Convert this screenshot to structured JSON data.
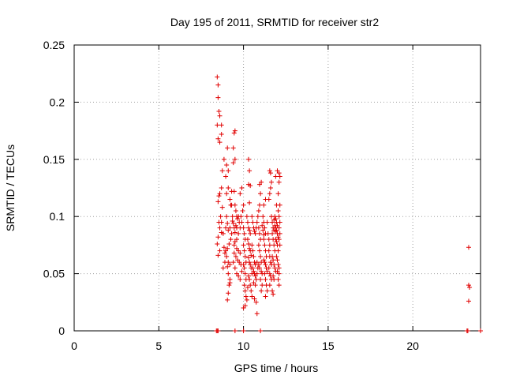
{
  "chart_data": {
    "type": "scatter",
    "title": "Day 195 of 2011, SRMTID for receiver str2",
    "xlabel": "GPS time / hours",
    "ylabel": "SRMTID / TECUs",
    "xlim": [
      0,
      24
    ],
    "ylim": [
      0,
      0.25
    ],
    "xticks": [
      0,
      5,
      10,
      15,
      20
    ],
    "xtick_labels": [
      "0",
      "5",
      "10",
      "15",
      "20"
    ],
    "yticks": [
      0,
      0.05,
      0.1,
      0.15,
      0.2,
      0.25
    ],
    "ytick_labels": [
      "0",
      "0.05",
      "0.1",
      "0.15",
      "0.2",
      "0.25"
    ],
    "grid": true,
    "marker": "+",
    "color": "#e00000",
    "series": [
      {
        "name": "SRMTID",
        "points": [
          [
            8.45,
            0.222
          ],
          [
            8.5,
            0.215
          ],
          [
            8.5,
            0.204
          ],
          [
            8.55,
            0.192
          ],
          [
            8.6,
            0.188
          ],
          [
            8.45,
            0.18
          ],
          [
            8.7,
            0.18
          ],
          [
            8.5,
            0.168
          ],
          [
            8.6,
            0.165
          ],
          [
            8.7,
            0.172
          ],
          [
            8.5,
            0.113
          ],
          [
            8.55,
            0.118
          ],
          [
            8.6,
            0.12
          ],
          [
            8.65,
            0.1
          ],
          [
            8.7,
            0.125
          ],
          [
            8.55,
            0.095
          ],
          [
            8.5,
            0.082
          ],
          [
            8.6,
            0.09
          ],
          [
            8.7,
            0.086
          ],
          [
            8.45,
            0.076
          ],
          [
            8.5,
            0.066
          ],
          [
            8.6,
            0.07
          ],
          [
            8.75,
            0.108
          ],
          [
            8.8,
            0.085
          ],
          [
            8.85,
            0.073
          ],
          [
            8.9,
            0.068
          ],
          [
            8.95,
            0.09
          ],
          [
            8.8,
            0.055
          ],
          [
            8.9,
            0.06
          ],
          [
            8.75,
            0.14
          ],
          [
            8.85,
            0.15
          ],
          [
            8.95,
            0.135
          ],
          [
            8.7,
            0.095
          ],
          [
            9.0,
            0.145
          ],
          [
            9.05,
            0.16
          ],
          [
            9.1,
            0.14
          ],
          [
            9.0,
            0.12
          ],
          [
            9.1,
            0.125
          ],
          [
            9.2,
            0.115
          ],
          [
            9.3,
            0.11
          ],
          [
            9.0,
            0.1
          ],
          [
            9.05,
            0.094
          ],
          [
            9.1,
            0.088
          ],
          [
            9.2,
            0.09
          ],
          [
            9.3,
            0.085
          ],
          [
            9.35,
            0.096
          ],
          [
            9.25,
            0.08
          ],
          [
            9.15,
            0.076
          ],
          [
            9.05,
            0.072
          ],
          [
            8.95,
            0.07
          ],
          [
            9.0,
            0.065
          ],
          [
            9.1,
            0.06
          ],
          [
            9.2,
            0.058
          ],
          [
            9.05,
            0.056
          ],
          [
            9.1,
            0.05
          ],
          [
            9.2,
            0.045
          ],
          [
            9.15,
            0.04
          ],
          [
            9.2,
            0.042
          ],
          [
            9.1,
            0.033
          ],
          [
            9.05,
            0.027
          ],
          [
            9.4,
            0.16
          ],
          [
            9.45,
            0.173
          ],
          [
            9.5,
            0.175
          ],
          [
            9.4,
            0.147
          ],
          [
            9.5,
            0.15
          ],
          [
            9.45,
            0.122
          ],
          [
            9.5,
            0.11
          ],
          [
            9.55,
            0.105
          ],
          [
            9.6,
            0.1
          ],
          [
            9.65,
            0.098
          ],
          [
            9.4,
            0.094
          ],
          [
            9.45,
            0.09
          ],
          [
            9.5,
            0.086
          ],
          [
            9.55,
            0.092
          ],
          [
            9.6,
            0.09
          ],
          [
            9.7,
            0.1
          ],
          [
            9.75,
            0.095
          ],
          [
            9.8,
            0.09
          ],
          [
            9.7,
            0.085
          ],
          [
            9.6,
            0.08
          ],
          [
            9.5,
            0.078
          ],
          [
            9.45,
            0.075
          ],
          [
            9.6,
            0.072
          ],
          [
            9.7,
            0.07
          ],
          [
            9.8,
            0.068
          ],
          [
            9.55,
            0.065
          ],
          [
            9.65,
            0.062
          ],
          [
            9.75,
            0.06
          ],
          [
            9.85,
            0.058
          ],
          [
            9.5,
            0.055
          ],
          [
            9.6,
            0.05
          ],
          [
            9.7,
            0.048
          ],
          [
            9.8,
            0.045
          ],
          [
            9.9,
            0.052
          ],
          [
            9.4,
            0.06
          ],
          [
            9.45,
            0.068
          ],
          [
            9.85,
            0.1
          ],
          [
            9.9,
            0.095
          ],
          [
            9.95,
            0.105
          ],
          [
            9.8,
            0.12
          ],
          [
            9.9,
            0.125
          ],
          [
            10.0,
            0.11
          ],
          [
            10.0,
            0.09
          ],
          [
            10.05,
            0.085
          ],
          [
            10.1,
            0.08
          ],
          [
            10.0,
            0.075
          ],
          [
            10.05,
            0.07
          ],
          [
            10.1,
            0.065
          ],
          [
            10.15,
            0.06
          ],
          [
            10.0,
            0.058
          ],
          [
            10.05,
            0.055
          ],
          [
            10.1,
            0.05
          ],
          [
            10.15,
            0.045
          ],
          [
            10.05,
            0.04
          ],
          [
            10.1,
            0.035
          ],
          [
            10.15,
            0.03
          ],
          [
            10.0,
            0.02
          ],
          [
            10.1,
            0.022
          ],
          [
            10.2,
            0.027
          ],
          [
            10.2,
            0.1
          ],
          [
            10.25,
            0.095
          ],
          [
            10.3,
            0.09
          ],
          [
            10.35,
            0.088
          ],
          [
            10.4,
            0.085
          ],
          [
            10.25,
            0.08
          ],
          [
            10.3,
            0.076
          ],
          [
            10.35,
            0.072
          ],
          [
            10.4,
            0.07
          ],
          [
            10.45,
            0.066
          ],
          [
            10.3,
            0.064
          ],
          [
            10.35,
            0.06
          ],
          [
            10.4,
            0.058
          ],
          [
            10.45,
            0.055
          ],
          [
            10.5,
            0.05
          ],
          [
            10.3,
            0.048
          ],
          [
            10.35,
            0.045
          ],
          [
            10.4,
            0.04
          ],
          [
            10.25,
            0.038
          ],
          [
            10.45,
            0.035
          ],
          [
            10.5,
            0.03
          ],
          [
            10.3,
            0.15
          ],
          [
            10.35,
            0.14
          ],
          [
            10.3,
            0.128
          ],
          [
            10.4,
            0.127
          ],
          [
            10.35,
            0.112
          ],
          [
            10.5,
            0.075
          ],
          [
            10.55,
            0.07
          ],
          [
            10.6,
            0.065
          ],
          [
            10.65,
            0.06
          ],
          [
            10.7,
            0.058
          ],
          [
            10.55,
            0.055
          ],
          [
            10.6,
            0.052
          ],
          [
            10.65,
            0.05
          ],
          [
            10.7,
            0.048
          ],
          [
            10.75,
            0.045
          ],
          [
            10.6,
            0.042
          ],
          [
            10.7,
            0.04
          ],
          [
            10.8,
            0.05
          ],
          [
            10.85,
            0.055
          ],
          [
            10.8,
            0.06
          ],
          [
            10.65,
            0.028
          ],
          [
            10.75,
            0.025
          ],
          [
            10.8,
            0.015
          ],
          [
            10.7,
            0.085
          ],
          [
            10.75,
            0.09
          ],
          [
            10.8,
            0.095
          ],
          [
            10.85,
            0.1
          ],
          [
            10.9,
            0.105
          ],
          [
            10.95,
            0.11
          ],
          [
            10.9,
            0.09
          ],
          [
            10.95,
            0.085
          ],
          [
            11.0,
            0.08
          ],
          [
            10.9,
            0.075
          ],
          [
            10.95,
            0.07
          ],
          [
            11.0,
            0.065
          ],
          [
            11.05,
            0.06
          ],
          [
            10.9,
            0.058
          ],
          [
            10.95,
            0.055
          ],
          [
            11.05,
            0.052
          ],
          [
            11.1,
            0.05
          ],
          [
            11.0,
            0.045
          ],
          [
            11.1,
            0.04
          ],
          [
            11.05,
            0.035
          ],
          [
            11.0,
            0.12
          ],
          [
            10.95,
            0.128
          ],
          [
            11.05,
            0.13
          ],
          [
            11.15,
            0.1
          ],
          [
            11.2,
            0.095
          ],
          [
            11.25,
            0.09
          ],
          [
            11.3,
            0.085
          ],
          [
            11.2,
            0.08
          ],
          [
            11.25,
            0.075
          ],
          [
            11.3,
            0.07
          ],
          [
            11.35,
            0.065
          ],
          [
            11.2,
            0.062
          ],
          [
            11.25,
            0.06
          ],
          [
            11.3,
            0.058
          ],
          [
            11.35,
            0.055
          ],
          [
            11.4,
            0.052
          ],
          [
            11.25,
            0.05
          ],
          [
            11.3,
            0.045
          ],
          [
            11.35,
            0.04
          ],
          [
            11.4,
            0.035
          ],
          [
            11.3,
            0.03
          ],
          [
            11.2,
            0.11
          ],
          [
            11.3,
            0.115
          ],
          [
            11.4,
            0.095
          ],
          [
            11.45,
            0.085
          ],
          [
            11.5,
            0.08
          ],
          [
            11.55,
            0.075
          ],
          [
            11.5,
            0.07
          ],
          [
            11.55,
            0.065
          ],
          [
            11.6,
            0.06
          ],
          [
            11.65,
            0.058
          ],
          [
            11.5,
            0.055
          ],
          [
            11.55,
            0.05
          ],
          [
            11.6,
            0.048
          ],
          [
            11.65,
            0.045
          ],
          [
            11.55,
            0.04
          ],
          [
            11.5,
            0.115
          ],
          [
            11.55,
            0.12
          ],
          [
            11.6,
            0.125
          ],
          [
            11.65,
            0.13
          ],
          [
            11.55,
            0.14
          ],
          [
            11.6,
            0.138
          ],
          [
            11.65,
            0.1
          ],
          [
            11.7,
            0.095
          ],
          [
            11.75,
            0.09
          ],
          [
            11.8,
            0.088
          ],
          [
            11.7,
            0.085
          ],
          [
            11.75,
            0.08
          ],
          [
            11.8,
            0.075
          ],
          [
            11.85,
            0.07
          ],
          [
            11.7,
            0.065
          ],
          [
            11.75,
            0.062
          ],
          [
            11.8,
            0.058
          ],
          [
            11.85,
            0.055
          ],
          [
            11.9,
            0.052
          ],
          [
            11.75,
            0.048
          ],
          [
            11.8,
            0.045
          ],
          [
            11.7,
            0.035
          ],
          [
            11.75,
            0.032
          ],
          [
            11.85,
            0.1
          ],
          [
            11.9,
            0.098
          ],
          [
            11.95,
            0.095
          ],
          [
            12.0,
            0.092
          ],
          [
            11.9,
            0.09
          ],
          [
            11.95,
            0.088
          ],
          [
            12.0,
            0.085
          ],
          [
            12.05,
            0.082
          ],
          [
            11.9,
            0.08
          ],
          [
            11.95,
            0.078
          ],
          [
            12.0,
            0.075
          ],
          [
            12.05,
            0.07
          ],
          [
            11.95,
            0.065
          ],
          [
            12.0,
            0.062
          ],
          [
            12.05,
            0.058
          ],
          [
            12.1,
            0.055
          ],
          [
            12.0,
            0.052
          ],
          [
            12.1,
            0.05
          ],
          [
            12.05,
            0.045
          ],
          [
            12.1,
            0.04
          ],
          [
            11.9,
            0.135
          ],
          [
            12.0,
            0.14
          ],
          [
            12.1,
            0.138
          ],
          [
            12.15,
            0.135
          ],
          [
            12.1,
            0.13
          ],
          [
            11.95,
            0.11
          ],
          [
            12.05,
            0.105
          ],
          [
            12.1,
            0.1
          ],
          [
            12.15,
            0.095
          ],
          [
            12.1,
            0.09
          ],
          [
            12.15,
            0.085
          ],
          [
            12.1,
            0.08
          ],
          [
            12.15,
            0.075
          ],
          [
            12.05,
            0.12
          ],
          [
            12.15,
            0.11
          ],
          [
            11.8,
            0.097
          ],
          [
            11.85,
            0.092
          ],
          [
            11.9,
            0.087
          ],
          [
            9.3,
            0.122
          ],
          [
            9.25,
            0.11
          ],
          [
            9.35,
            0.1
          ],
          [
            10.5,
            0.1
          ],
          [
            10.55,
            0.095
          ],
          [
            10.6,
            0.09
          ],
          [
            10.65,
            0.087
          ],
          [
            11.1,
            0.092
          ],
          [
            11.15,
            0.088
          ],
          [
            11.2,
            0.084
          ],
          [
            23.3,
            0.073
          ],
          [
            23.3,
            0.04
          ],
          [
            23.35,
            0.038
          ],
          [
            23.3,
            0.026
          ],
          [
            8.4,
            0.0
          ],
          [
            8.45,
            0.0
          ],
          [
            8.5,
            0.0
          ],
          [
            9.5,
            0.0
          ],
          [
            10.0,
            0.0
          ],
          [
            11.0,
            0.0
          ],
          [
            23.2,
            0.0
          ],
          [
            23.25,
            0.0
          ],
          [
            24.0,
            0.0
          ]
        ]
      }
    ]
  }
}
